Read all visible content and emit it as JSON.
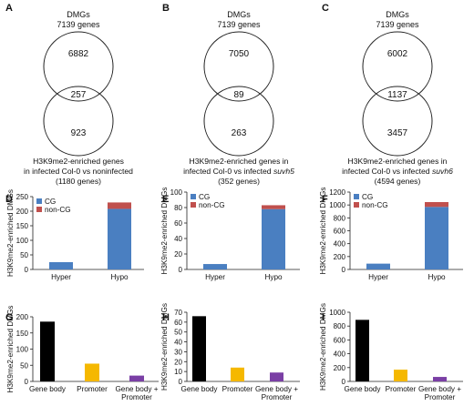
{
  "colors": {
    "cg": "#4a7fc1",
    "non_cg": "#c0504d",
    "gene_body": "#000000",
    "promoter": "#f5b800",
    "gene_body_promoter": "#7a3fa5",
    "circle": "#222222"
  },
  "panel_labels": [
    "A",
    "B",
    "C",
    "D",
    "E",
    "F",
    "G",
    "H",
    "I"
  ],
  "venns": [
    {
      "label": "A",
      "top_title": "DMGs",
      "top_sub": "7139 genes",
      "top_only": "6882",
      "overlap": "257",
      "bottom_only": "923",
      "caption_line1": "H3K9me2-enriched genes",
      "caption_line2": "in infected Col-0 vs noninfected",
      "caption_line3": "(1180 genes)"
    },
    {
      "label": "B",
      "top_title": "DMGs",
      "top_sub": "7139 genes",
      "top_only": "7050",
      "overlap": "89",
      "bottom_only": "263",
      "caption_line1": "H3K9me2-enriched genes in",
      "caption_line2": "infected Col-0 vs infected",
      "caption_line2_italic": "suvh5",
      "caption_line3": "(352 genes)"
    },
    {
      "label": "C",
      "top_title": "DMGs",
      "top_sub": "7139 genes",
      "top_only": "6002",
      "overlap": "1137",
      "bottom_only": "3457",
      "caption_line1": "H3K9me2-enriched genes in",
      "caption_line2": "infected Col-0 vs infected",
      "caption_line2_italic": "suvh6",
      "caption_line3": "(4594 genes)"
    }
  ],
  "chart_data": [
    {
      "panel": "D",
      "type": "bar",
      "stacked": true,
      "categories": [
        "Hyper",
        "Hypo"
      ],
      "series": [
        {
          "name": "CG",
          "values": [
            25,
            208
          ]
        },
        {
          "name": "non-CG",
          "values": [
            0,
            22
          ]
        }
      ],
      "ylabel": "H3K9me2-enriched DMGs",
      "ylim": [
        0,
        250
      ],
      "yticks": [
        0,
        50,
        100,
        150,
        200,
        250
      ],
      "legend": "top-left"
    },
    {
      "panel": "E",
      "type": "bar",
      "stacked": true,
      "categories": [
        "Hyper",
        "Hypo"
      ],
      "series": [
        {
          "name": "CG",
          "values": [
            7,
            78
          ]
        },
        {
          "name": "non-CG",
          "values": [
            0,
            5
          ]
        }
      ],
      "ylabel": "H3K9me2-enriched DMGs",
      "ylim": [
        0,
        100
      ],
      "yticks": [
        0,
        20,
        40,
        60,
        80,
        100
      ],
      "legend": "top-left"
    },
    {
      "panel": "F",
      "type": "bar",
      "stacked": true,
      "categories": [
        "Hyper",
        "Hypo"
      ],
      "series": [
        {
          "name": "CG",
          "values": [
            90,
            970
          ]
        },
        {
          "name": "non-CG",
          "values": [
            0,
            75
          ]
        }
      ],
      "ylabel": "H3K9me2-enriched DMGs",
      "ylim": [
        0,
        1200
      ],
      "yticks": [
        0,
        200,
        400,
        600,
        800,
        1000,
        1200
      ],
      "legend": "top-left"
    },
    {
      "panel": "G",
      "type": "bar",
      "categories": [
        "Gene body",
        "Promoter",
        "Gene body +\nPromoter"
      ],
      "values": [
        185,
        55,
        18
      ],
      "ylabel": "H3K9me2-enriched DMGs",
      "ylim": [
        0,
        200
      ],
      "yticks": [
        0,
        50,
        100,
        150,
        200
      ]
    },
    {
      "panel": "H",
      "type": "bar",
      "categories": [
        "Gene body",
        "Promoter",
        "Gene body +\nPromoter"
      ],
      "values": [
        66,
        14,
        9
      ],
      "ylabel": "H3K9me2-enriched DMGs",
      "ylim": [
        0,
        70
      ],
      "yticks": [
        0,
        10,
        20,
        30,
        40,
        50,
        60,
        70
      ]
    },
    {
      "panel": "I",
      "type": "bar",
      "categories": [
        "Gene body",
        "Promoter",
        "Gene body +\nPromoter"
      ],
      "values": [
        890,
        170,
        65
      ],
      "ylabel": "H3K9me2-enriched DMGs",
      "ylim": [
        0,
        1000
      ],
      "yticks": [
        0,
        200,
        400,
        600,
        800,
        1000
      ]
    }
  ]
}
